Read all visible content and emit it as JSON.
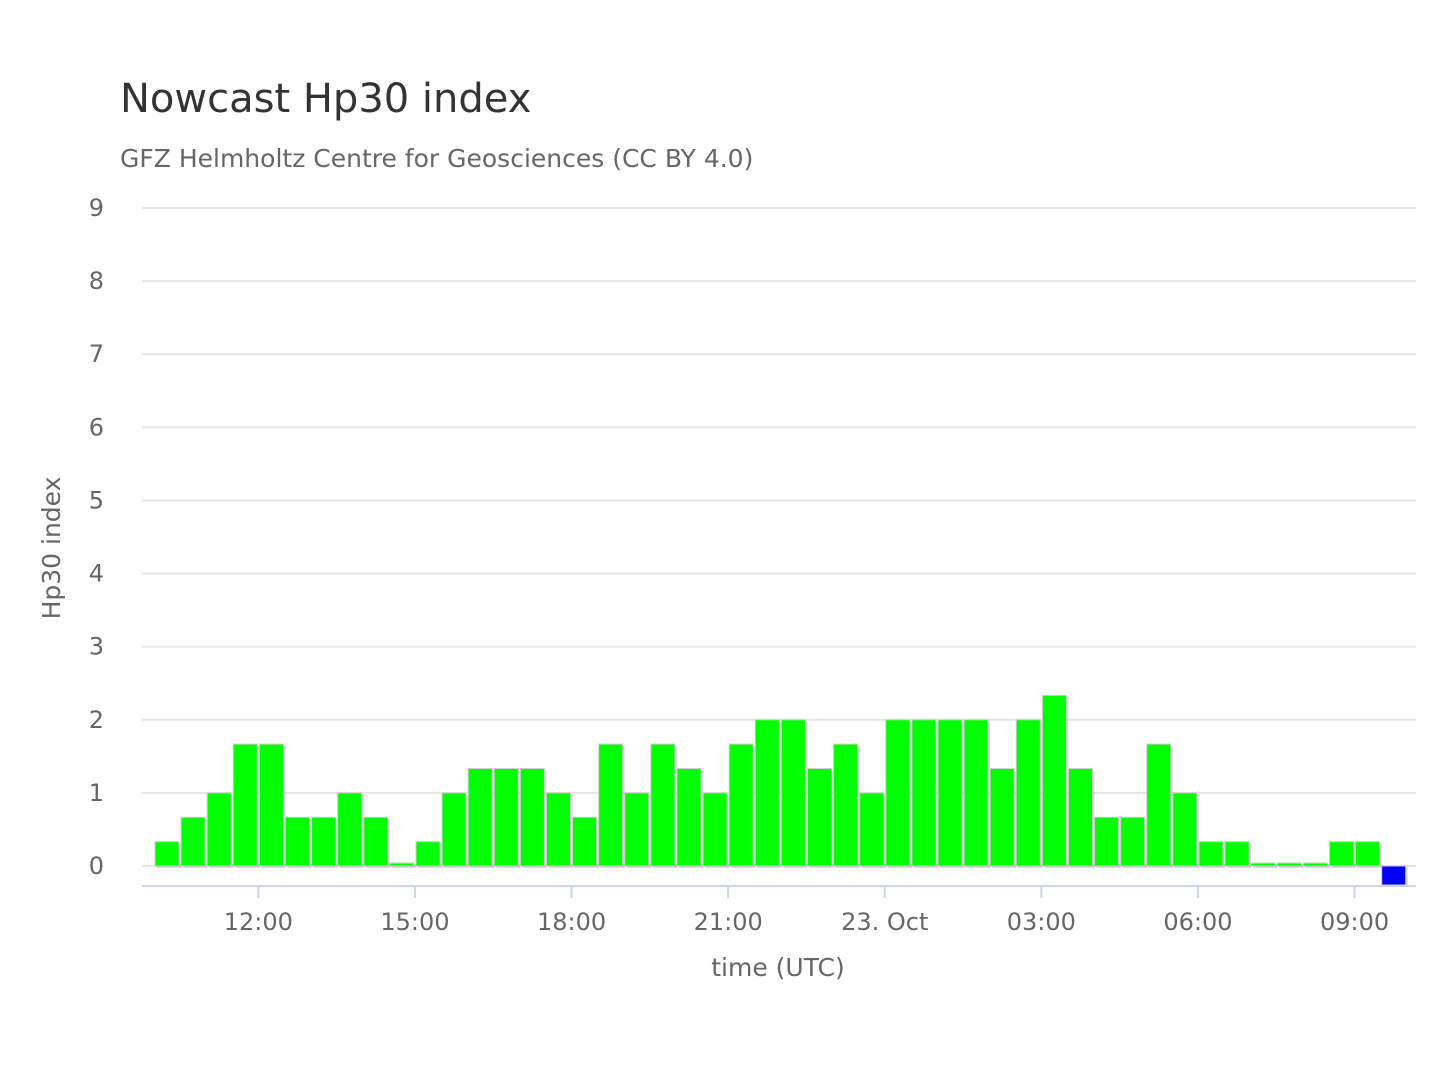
{
  "chart_data": {
    "type": "bar",
    "title": "Nowcast Hp30 index",
    "subtitle": "GFZ Helmholtz Centre for Geosciences (CC BY 4.0)",
    "ylabel": "Hp30 index",
    "xlabel": "time (UTC)",
    "ylim": [
      0,
      9
    ],
    "yticks": [
      "0",
      "1",
      "2",
      "3",
      "4",
      "5",
      "6",
      "7",
      "8",
      "9"
    ],
    "xtick_labels": [
      "12:00",
      "15:00",
      "18:00",
      "21:00",
      "23. Oct",
      "03:00",
      "06:00",
      "09:00"
    ],
    "grid": true,
    "legend": "none",
    "colors": {
      "observed": "#00ff00",
      "nowcast": "#0000ff",
      "bar_border": "#cccccc",
      "grid": "#e6e6e6",
      "axis": "#ccd6eb"
    },
    "x": [
      "10:00",
      "10:30",
      "11:00",
      "11:30",
      "12:00",
      "12:30",
      "13:00",
      "13:30",
      "14:00",
      "14:30",
      "15:00",
      "15:30",
      "16:00",
      "16:30",
      "17:00",
      "17:30",
      "18:00",
      "18:30",
      "19:00",
      "19:30",
      "20:00",
      "20:30",
      "21:00",
      "21:30",
      "22:00",
      "22:30",
      "23:00",
      "23:30",
      "00:00",
      "00:30",
      "01:00",
      "01:30",
      "02:00",
      "02:30",
      "03:00",
      "03:30",
      "04:00",
      "04:30",
      "05:00",
      "05:30",
      "06:00",
      "06:30",
      "07:00",
      "07:30",
      "08:00",
      "08:30",
      "09:00",
      "09:30"
    ],
    "values": [
      0.333,
      0.667,
      1,
      1.667,
      1.667,
      0.667,
      0.667,
      1,
      0.667,
      0,
      0.333,
      1,
      1.333,
      1.333,
      1.333,
      1,
      0.667,
      1.667,
      1,
      1.667,
      1.333,
      1,
      1.667,
      2,
      2,
      1.333,
      1.667,
      1,
      2,
      2,
      2,
      2,
      1.333,
      2,
      2.333,
      1.333,
      0.667,
      0.667,
      1.667,
      1,
      0.333,
      0.333,
      0,
      0,
      0,
      0.333,
      0.333,
      0
    ],
    "bar_types": [
      "observed",
      "observed",
      "observed",
      "observed",
      "observed",
      "observed",
      "observed",
      "observed",
      "observed",
      "observed",
      "observed",
      "observed",
      "observed",
      "observed",
      "observed",
      "observed",
      "observed",
      "observed",
      "observed",
      "observed",
      "observed",
      "observed",
      "observed",
      "observed",
      "observed",
      "observed",
      "observed",
      "observed",
      "observed",
      "observed",
      "observed",
      "observed",
      "observed",
      "observed",
      "observed",
      "observed",
      "observed",
      "observed",
      "observed",
      "observed",
      "observed",
      "observed",
      "observed",
      "observed",
      "observed",
      "observed",
      "observed",
      "nowcast"
    ]
  }
}
